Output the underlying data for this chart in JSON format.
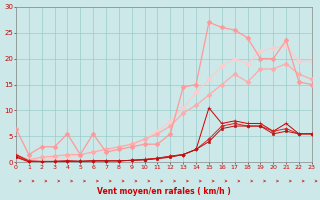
{
  "xlabel": "Vent moyen/en rafales ( km/h )",
  "xlim": [
    0,
    23
  ],
  "ylim": [
    0,
    30
  ],
  "xticks": [
    0,
    1,
    2,
    3,
    4,
    5,
    6,
    7,
    8,
    9,
    10,
    11,
    12,
    13,
    14,
    15,
    16,
    17,
    18,
    19,
    20,
    21,
    22,
    23
  ],
  "yticks": [
    0,
    5,
    10,
    15,
    20,
    25,
    30
  ],
  "bg_color": "#cce8e8",
  "grid_color": "#99cccc",
  "series": [
    {
      "x": [
        0,
        1,
        2,
        3,
        4,
        5,
        6,
        7,
        8,
        9,
        10,
        11,
        12,
        13,
        14,
        15,
        16,
        17,
        18,
        19,
        20,
        21,
        22,
        23
      ],
      "y": [
        1.5,
        0.3,
        0.2,
        0.2,
        0.3,
        0.2,
        0.3,
        0.3,
        0.3,
        0.4,
        0.6,
        0.8,
        1.2,
        1.5,
        2.5,
        10.5,
        7.5,
        8.0,
        7.5,
        7.5,
        6.0,
        7.5,
        5.5,
        5.5
      ],
      "color": "#cc0000",
      "lw": 0.7,
      "marker": "+",
      "ms": 2.5,
      "zorder": 5
    },
    {
      "x": [
        0,
        1,
        2,
        3,
        4,
        5,
        6,
        7,
        8,
        9,
        10,
        11,
        12,
        13,
        14,
        15,
        16,
        17,
        18,
        19,
        20,
        21,
        22,
        23
      ],
      "y": [
        1.2,
        0.2,
        0.1,
        0.2,
        0.3,
        0.2,
        0.3,
        0.3,
        0.3,
        0.4,
        0.5,
        0.8,
        1.2,
        1.5,
        2.5,
        4.5,
        7.0,
        7.5,
        7.0,
        7.0,
        6.0,
        6.5,
        5.5,
        5.5
      ],
      "color": "#dd2222",
      "lw": 0.7,
      "marker": "D",
      "ms": 1.8,
      "zorder": 5
    },
    {
      "x": [
        0,
        1,
        2,
        3,
        4,
        5,
        6,
        7,
        8,
        9,
        10,
        11,
        12,
        13,
        14,
        15,
        16,
        17,
        18,
        19,
        20,
        21,
        22,
        23
      ],
      "y": [
        1.0,
        0.1,
        0.1,
        0.1,
        0.2,
        0.2,
        0.3,
        0.3,
        0.3,
        0.4,
        0.5,
        0.7,
        1.0,
        1.5,
        2.5,
        4.0,
        6.5,
        7.0,
        7.0,
        7.0,
        5.5,
        6.0,
        5.5,
        5.5
      ],
      "color": "#bb1111",
      "lw": 0.7,
      "marker": "s",
      "ms": 1.5,
      "zorder": 5
    },
    {
      "x": [
        0,
        1,
        2,
        3,
        4,
        5,
        6,
        7,
        8,
        9,
        10,
        11,
        12,
        13,
        14,
        15,
        16,
        17,
        18,
        19,
        20,
        21,
        22,
        23
      ],
      "y": [
        6.5,
        1.5,
        3.0,
        3.0,
        5.5,
        1.5,
        5.5,
        2.0,
        2.5,
        3.0,
        3.5,
        3.5,
        5.5,
        14.5,
        15.0,
        27.0,
        26.0,
        25.5,
        24.0,
        20.0,
        20.0,
        23.5,
        15.5,
        15.0
      ],
      "color": "#ff9999",
      "lw": 0.9,
      "marker": "D",
      "ms": 2.5,
      "zorder": 4
    },
    {
      "x": [
        0,
        1,
        2,
        3,
        4,
        5,
        6,
        7,
        8,
        9,
        10,
        11,
        12,
        13,
        14,
        15,
        16,
        17,
        18,
        19,
        20,
        21,
        22,
        23
      ],
      "y": [
        1.5,
        0.5,
        1.0,
        1.2,
        1.5,
        1.5,
        2.0,
        2.5,
        3.0,
        3.5,
        4.5,
        5.5,
        7.0,
        9.5,
        11.0,
        13.0,
        15.0,
        17.0,
        15.5,
        18.0,
        18.0,
        19.0,
        17.0,
        16.0
      ],
      "color": "#ffaaaa",
      "lw": 0.9,
      "marker": "D",
      "ms": 2.5,
      "zorder": 3
    },
    {
      "x": [
        0,
        1,
        2,
        3,
        4,
        5,
        6,
        7,
        8,
        9,
        10,
        11,
        12,
        13,
        14,
        15,
        16,
        17,
        18,
        19,
        20,
        21,
        22,
        23
      ],
      "y": [
        1.0,
        0.3,
        0.5,
        0.8,
        1.0,
        1.5,
        2.0,
        2.5,
        3.0,
        3.5,
        4.5,
        6.0,
        8.0,
        10.5,
        13.5,
        16.0,
        18.5,
        20.0,
        19.0,
        21.5,
        22.0,
        22.5,
        19.5,
        19.5
      ],
      "color": "#ffcccc",
      "lw": 0.9,
      "marker": "D",
      "ms": 2.5,
      "zorder": 2
    }
  ]
}
